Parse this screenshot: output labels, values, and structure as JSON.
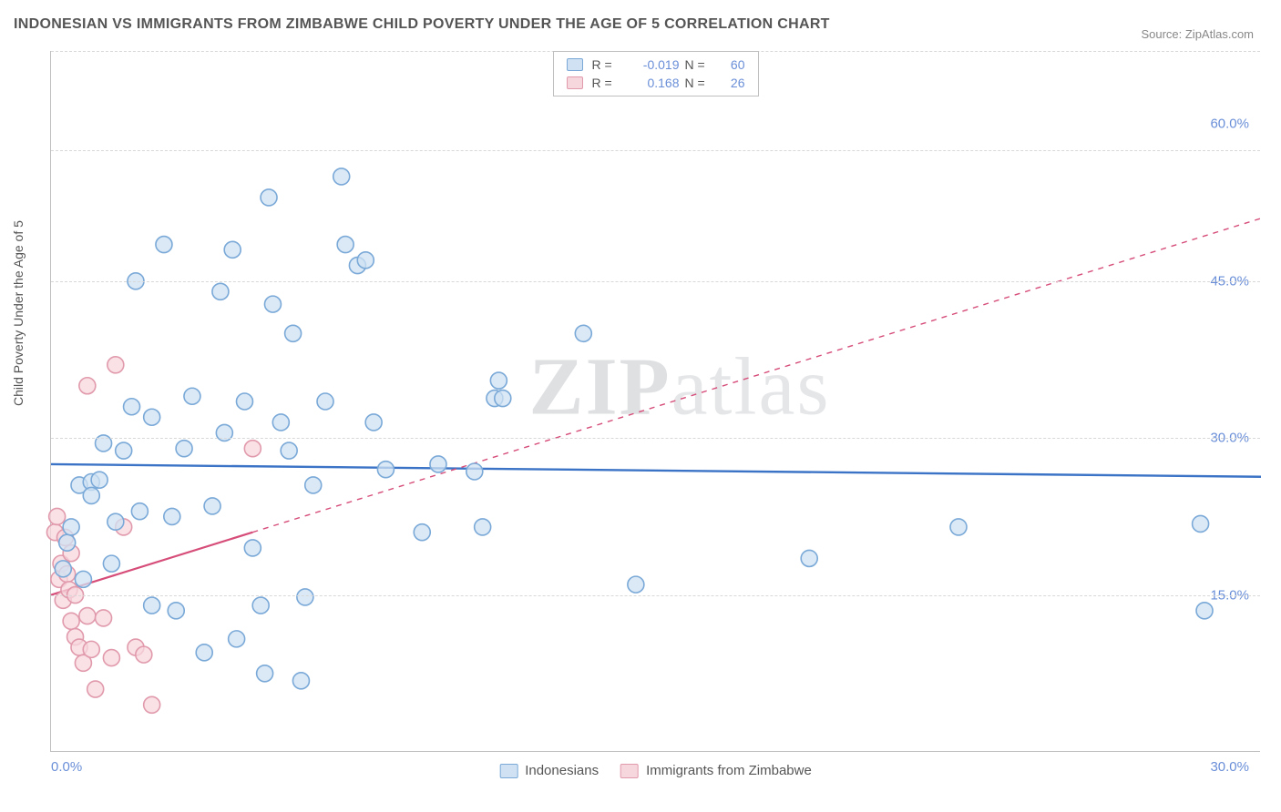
{
  "title": "INDONESIAN VS IMMIGRANTS FROM ZIMBABWE CHILD POVERTY UNDER THE AGE OF 5 CORRELATION CHART",
  "source": "Source: ZipAtlas.com",
  "ylabel": "Child Poverty Under the Age of 5",
  "watermark": {
    "bold": "ZIP",
    "rest": "atlas"
  },
  "chart": {
    "type": "scatter",
    "xlim": [
      0,
      30
    ],
    "ylim": [
      0,
      67
    ],
    "x_ticks": [
      {
        "value": 0,
        "label": "0.0%",
        "align": "left"
      },
      {
        "value": 30,
        "label": "30.0%",
        "align": "right"
      }
    ],
    "y_ticks": [
      {
        "value": 15,
        "label": "15.0%"
      },
      {
        "value": 30,
        "label": "30.0%"
      },
      {
        "value": 45,
        "label": "45.0%"
      },
      {
        "value": 60,
        "label": "60.0%"
      }
    ],
    "gridlines_y": [
      15,
      30,
      45,
      57.5,
      67
    ],
    "marker_radius": 9,
    "marker_stroke_width": 1.6,
    "background_color": "#ffffff",
    "grid_color": "#d8d8d8",
    "series": [
      {
        "name": "Indonesians",
        "fill": "#cfe1f3",
        "stroke": "#7aa9d8",
        "trend": {
          "y_at_x0": 27.5,
          "y_at_xmax": 26.3,
          "color": "#3b73c6",
          "width": 2.4,
          "solid_until_x": 30
        },
        "points": [
          [
            0.3,
            17.5
          ],
          [
            0.4,
            20
          ],
          [
            0.5,
            21.5
          ],
          [
            0.7,
            25.5
          ],
          [
            0.8,
            16.5
          ],
          [
            1.0,
            25.8
          ],
          [
            1.0,
            24.5
          ],
          [
            1.2,
            26
          ],
          [
            1.3,
            29.5
          ],
          [
            1.5,
            18
          ],
          [
            1.6,
            22
          ],
          [
            1.8,
            28.8
          ],
          [
            2.0,
            33
          ],
          [
            2.1,
            45
          ],
          [
            2.2,
            23
          ],
          [
            2.5,
            32
          ],
          [
            2.5,
            14
          ],
          [
            2.8,
            48.5
          ],
          [
            3.0,
            22.5
          ],
          [
            3.1,
            13.5
          ],
          [
            3.3,
            29
          ],
          [
            3.5,
            34
          ],
          [
            3.8,
            9.5
          ],
          [
            4.0,
            23.5
          ],
          [
            4.2,
            44
          ],
          [
            4.3,
            30.5
          ],
          [
            4.5,
            48.0
          ],
          [
            4.6,
            10.8
          ],
          [
            4.8,
            33.5
          ],
          [
            5.0,
            19.5
          ],
          [
            5.2,
            14
          ],
          [
            5.3,
            7.5
          ],
          [
            5.4,
            53
          ],
          [
            5.5,
            42.8
          ],
          [
            5.7,
            31.5
          ],
          [
            5.9,
            28.8
          ],
          [
            6.0,
            40
          ],
          [
            6.2,
            6.8
          ],
          [
            6.3,
            14.8
          ],
          [
            6.5,
            25.5
          ],
          [
            6.8,
            33.5
          ],
          [
            7.2,
            55
          ],
          [
            7.3,
            48.5
          ],
          [
            7.6,
            46.5
          ],
          [
            7.8,
            47
          ],
          [
            8.0,
            31.5
          ],
          [
            8.3,
            27
          ],
          [
            9.2,
            21
          ],
          [
            9.6,
            27.5
          ],
          [
            10.5,
            26.8
          ],
          [
            10.7,
            21.5
          ],
          [
            11.1,
            35.5
          ],
          [
            11.0,
            33.8
          ],
          [
            11.2,
            33.8
          ],
          [
            13.2,
            40
          ],
          [
            14.5,
            16
          ],
          [
            18.8,
            18.5
          ],
          [
            22.5,
            21.5
          ],
          [
            28.5,
            21.8
          ],
          [
            28.6,
            13.5
          ]
        ]
      },
      {
        "name": "Immigrants from Zimbabwe",
        "fill": "#f7d7de",
        "stroke": "#e19aac",
        "trend": {
          "y_at_x0": 15.0,
          "y_at_xmax": 51.0,
          "color": "#d64d79",
          "width": 2.2,
          "solid_until_x": 5.0
        },
        "points": [
          [
            0.1,
            21
          ],
          [
            0.15,
            22.5
          ],
          [
            0.2,
            16.5
          ],
          [
            0.25,
            18
          ],
          [
            0.3,
            14.5
          ],
          [
            0.35,
            20.5
          ],
          [
            0.4,
            17
          ],
          [
            0.45,
            15.5
          ],
          [
            0.5,
            19
          ],
          [
            0.5,
            12.5
          ],
          [
            0.6,
            11
          ],
          [
            0.6,
            15
          ],
          [
            0.7,
            10
          ],
          [
            0.8,
            8.5
          ],
          [
            0.9,
            13
          ],
          [
            0.9,
            35
          ],
          [
            1.0,
            9.8
          ],
          [
            1.1,
            6
          ],
          [
            1.3,
            12.8
          ],
          [
            1.5,
            9
          ],
          [
            1.6,
            37
          ],
          [
            1.8,
            21.5
          ],
          [
            2.1,
            10
          ],
          [
            2.3,
            9.3
          ],
          [
            2.5,
            4.5
          ],
          [
            5.0,
            29
          ]
        ]
      }
    ],
    "legend_top": {
      "rows": [
        {
          "swatch_fill": "#cfe1f3",
          "swatch_stroke": "#7aa9d8",
          "r_label": "R =",
          "r_value": "-0.019",
          "n_label": "N =",
          "n_value": "60"
        },
        {
          "swatch_fill": "#f7d7de",
          "swatch_stroke": "#e19aac",
          "r_label": "R =",
          "r_value": "0.168",
          "n_label": "N =",
          "n_value": "26"
        }
      ]
    },
    "legend_bottom": [
      {
        "swatch_fill": "#cfe1f3",
        "swatch_stroke": "#7aa9d8",
        "label": "Indonesians"
      },
      {
        "swatch_fill": "#f7d7de",
        "swatch_stroke": "#e19aac",
        "label": "Immigrants from Zimbabwe"
      }
    ]
  }
}
